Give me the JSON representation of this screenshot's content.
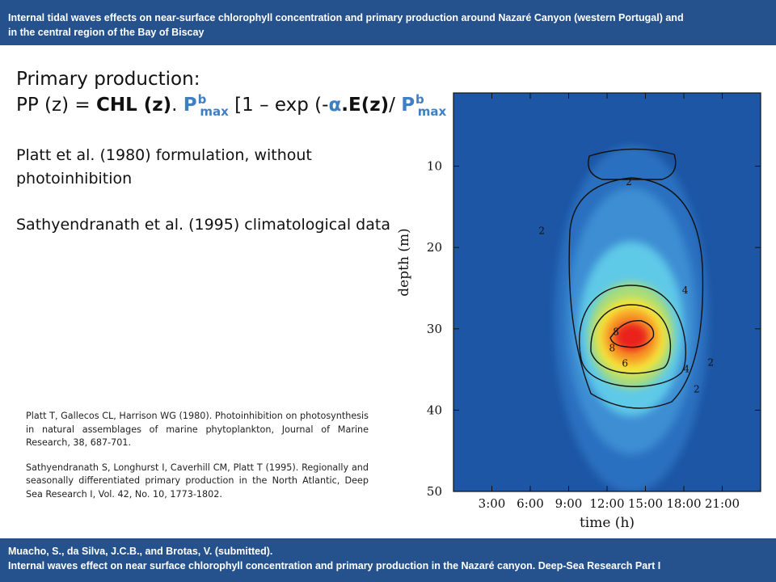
{
  "header": {
    "title_line1": "Internal tidal waves effects on near-surface chlorophyll concentration and primary production around Nazaré Canyon (western Portugal) and",
    "title_line2": "in the central region of the Bay of Biscay"
  },
  "content": {
    "heading": "Primary production:",
    "formula": {
      "prefix": "PP (z) = ",
      "chl": "CHL (z)",
      "dot": ". ",
      "p": "P",
      "sup": "b",
      "sub": "max",
      "middle": " [1 – exp (-",
      "alpha": "α",
      "dot2": ".",
      "ez": "E(z)",
      "slash": "/ ",
      "p2": "P",
      "sup2": "b",
      "sub2": "max",
      "close": " ]"
    },
    "note1": "Platt et al. (1980) formulation, without photoinhibition",
    "note2": "Sathyendranath et al. (1995) climatological data"
  },
  "references": [
    "Platt T, Gallecos CL, Harrison WG (1980). Photoinhibition on photosynthesis in natural assemblages of marine phytoplankton, Journal of Marine Research, 38, 687-701.",
    "Sathyendranath S, Longhurst I, Caverhill CM, Platt T (1995). Regionally and seasonally differentiated primary production in the North Atlantic, Deep Sea Research I, Vol. 42, No. 10, 1773-1802."
  ],
  "chart_data": {
    "type": "heatmap",
    "title": "",
    "xlabel": "time (h)",
    "ylabel": "depth (m)",
    "x_ticks": [
      "3:00",
      "6:00",
      "9:00",
      "12:00",
      "15:00",
      "18:00",
      "21:00"
    ],
    "x_tick_values": [
      3,
      6,
      9,
      12,
      15,
      18,
      21
    ],
    "y_ticks": [
      "10",
      "20",
      "30",
      "40",
      "50"
    ],
    "y_tick_values": [
      10,
      20,
      30,
      40,
      50
    ],
    "xlim": [
      0,
      24
    ],
    "ylim": [
      1,
      50
    ],
    "y_inverted": true,
    "contour_levels": [
      {
        "label": "2",
        "value": 2
      },
      {
        "label": "4",
        "value": 4
      },
      {
        "label": "6",
        "value": 6
      },
      {
        "label": "8",
        "value": 8
      }
    ],
    "contour_label_marks": [
      {
        "text": "2",
        "x": 13.7,
        "y": 12.0
      },
      {
        "text": "2",
        "x": 6.9,
        "y": 18.0
      },
      {
        "text": "4",
        "x": 18.1,
        "y": 25.3
      },
      {
        "text": "8",
        "x": 12.7,
        "y": 30.4
      },
      {
        "text": "8",
        "x": 12.4,
        "y": 32.4
      },
      {
        "text": "6",
        "x": 13.4,
        "y": 34.3
      },
      {
        "text": "4",
        "x": 18.2,
        "y": 35.0
      },
      {
        "text": "2",
        "x": 20.1,
        "y": 34.2
      },
      {
        "text": "2",
        "x": 19.0,
        "y": 37.5
      }
    ],
    "peak": {
      "x": 13.9,
      "y": 30.8,
      "value": 9
    },
    "colors": {
      "low": "#1c56a4",
      "mid": "#5ec9e8",
      "high": "#e9231c"
    }
  },
  "footer": {
    "citation_line1": "Muacho, S., da Silva, J.C.B., and Brotas, V. (submitted).",
    "citation_line2": "Internal waves effect on near surface chlorophyll concentration and primary production in the Nazaré canyon. Deep-Sea Research Part I"
  }
}
